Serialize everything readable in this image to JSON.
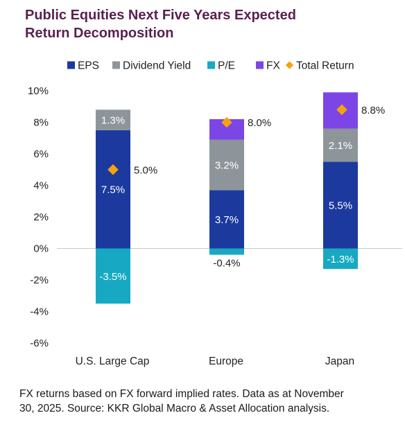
{
  "title": {
    "line1": "Public Equities Next Five Years Expected",
    "line2": "Return Decomposition"
  },
  "colors": {
    "eps": "#1c3a9e",
    "dividend_yield": "#8e959a",
    "pe": "#17a9c2",
    "fx": "#7c45e6",
    "total_return": "#f5a211",
    "title": "#5b1f4e",
    "axis_text": "#222222",
    "zero_line": "#c8c8c8"
  },
  "chart_data": {
    "type": "bar",
    "stacked": true,
    "categories": [
      "U.S. Large Cap",
      "Europe",
      "Japan"
    ],
    "series": [
      {
        "key": "eps",
        "name": "EPS",
        "values": [
          7.5,
          3.7,
          5.5
        ],
        "labels": [
          "7.5%",
          "3.7%",
          "5.5%"
        ]
      },
      {
        "key": "dividend_yield",
        "name": "Dividend Yield",
        "values": [
          1.3,
          3.2,
          2.1
        ],
        "labels": [
          "1.3%",
          "3.2%",
          "2.1%"
        ]
      },
      {
        "key": "pe",
        "name": "P/E",
        "values": [
          -3.5,
          -0.4,
          -1.3
        ],
        "labels": [
          "-3.5%",
          "-0.4%",
          "-1.3%"
        ]
      },
      {
        "key": "fx",
        "name": "FX",
        "values": [
          0.0,
          1.3,
          2.3
        ],
        "labels": [
          "",
          "",
          ""
        ]
      }
    ],
    "total_return": {
      "key": "total_return",
      "name": "Total Return",
      "values": [
        5.0,
        8.0,
        8.8
      ],
      "labels": [
        "5.0%",
        "8.0%",
        "8.8%"
      ]
    },
    "ylim": [
      -6,
      10
    ],
    "yticks": [
      10,
      8,
      6,
      4,
      2,
      0,
      -2,
      -4,
      -6
    ],
    "ytick_labels": [
      "10%",
      "8%",
      "6%",
      "4%",
      "2%",
      "0%",
      "-2%",
      "-4%",
      "-6%"
    ],
    "legend_position": "top",
    "grid": false
  },
  "footnote": {
    "line1": "FX returns based on FX forward implied rates. Data as at November",
    "line2": "30, 2025. Source: KKR Global Macro & Asset Allocation analysis."
  }
}
